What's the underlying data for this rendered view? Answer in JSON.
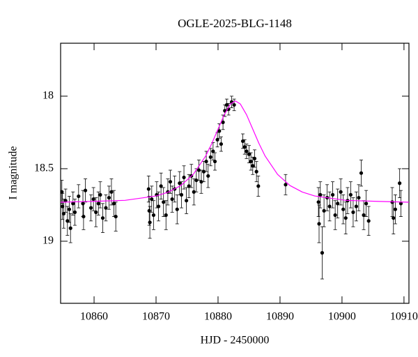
{
  "chart_data": {
    "type": "errorbar",
    "title": "OGLE-2025-BLG-1148",
    "xlabel": "HJD - 2450000",
    "ylabel": "I magnitude",
    "xlim": [
      10854.6,
      10910.8
    ],
    "ylim": [
      17.635,
      19.428
    ],
    "y_inverted": true,
    "xticks": [
      10860,
      10870,
      10880,
      10890,
      10900,
      10910
    ],
    "yticks": [
      18,
      18.5,
      19
    ],
    "series": [
      {
        "type": "errorbar",
        "color": "#000000",
        "x": [
          10854.8,
          10854.9,
          10855.1,
          10855.4,
          10855.7,
          10856.0,
          10856.2,
          10856.6,
          10856.9,
          10857.5,
          10858.2,
          10858.3,
          10858.6,
          10859.5,
          10859.9,
          10860.3,
          10860.7,
          10861.0,
          10861.4,
          10861.9,
          10862.4,
          10862.8,
          10863.2,
          10863.5,
          10868.8,
          10868.9,
          10869.0,
          10869.3,
          10869.6,
          10870.1,
          10870.4,
          10870.8,
          10871.2,
          10871.6,
          10871.9,
          10872.3,
          10872.6,
          10873.0,
          10873.4,
          10873.8,
          10874.1,
          10874.5,
          10874.9,
          10875.3,
          10875.7,
          10876.1,
          10876.5,
          10876.9,
          10877.3,
          10877.7,
          10878.1,
          10878.4,
          10878.8,
          10879.2,
          10879.5,
          10879.9,
          10880.2,
          10880.5,
          10880.8,
          10881.1,
          10881.4,
          10881.7,
          10882.2,
          10882.6,
          10884.0,
          10884.3,
          10884.6,
          10885.0,
          10885.3,
          10885.6,
          10885.9,
          10886.2,
          10886.5,
          10890.9,
          10896.2,
          10896.3,
          10896.5,
          10896.8,
          10897.1,
          10897.6,
          10898.0,
          10898.5,
          10898.9,
          10899.3,
          10899.8,
          10900.2,
          10900.6,
          10900.9,
          10901.4,
          10901.8,
          10902.3,
          10902.7,
          10903.1,
          10903.5,
          10903.9,
          10904.3,
          10908.1,
          10908.3,
          10908.6,
          10909.3,
          10909.5
        ],
        "values": [
          18.66,
          18.76,
          18.81,
          18.72,
          18.86,
          18.78,
          18.91,
          18.74,
          18.8,
          18.69,
          18.74,
          18.83,
          18.65,
          18.77,
          18.71,
          18.8,
          18.74,
          18.68,
          18.84,
          18.77,
          18.7,
          18.66,
          18.74,
          18.83,
          18.64,
          18.79,
          18.87,
          18.71,
          18.82,
          18.68,
          18.76,
          18.62,
          18.73,
          18.82,
          18.66,
          18.59,
          18.71,
          18.64,
          18.78,
          18.6,
          18.68,
          18.56,
          18.72,
          18.62,
          18.55,
          18.66,
          18.58,
          18.51,
          18.59,
          18.52,
          18.45,
          18.55,
          18.42,
          18.38,
          18.45,
          18.3,
          18.24,
          18.33,
          18.18,
          18.1,
          18.06,
          18.09,
          18.04,
          18.06,
          18.31,
          18.35,
          18.38,
          18.4,
          18.45,
          18.48,
          18.43,
          18.52,
          18.62,
          18.61,
          18.73,
          18.88,
          18.68,
          19.08,
          18.79,
          18.7,
          18.76,
          18.68,
          18.82,
          18.74,
          18.66,
          18.78,
          18.84,
          18.72,
          18.68,
          18.8,
          18.76,
          18.7,
          18.53,
          18.82,
          18.74,
          18.86,
          18.73,
          18.84,
          18.78,
          18.6,
          18.74
        ],
        "errors": [
          0.08,
          0.09,
          0.1,
          0.08,
          0.1,
          0.09,
          0.1,
          0.08,
          0.09,
          0.08,
          0.09,
          0.09,
          0.08,
          0.09,
          0.08,
          0.1,
          0.08,
          0.09,
          0.1,
          0.09,
          0.08,
          0.09,
          0.09,
          0.1,
          0.09,
          0.1,
          0.11,
          0.09,
          0.1,
          0.09,
          0.1,
          0.09,
          0.1,
          0.1,
          0.09,
          0.08,
          0.09,
          0.09,
          0.1,
          0.08,
          0.09,
          0.08,
          0.09,
          0.08,
          0.08,
          0.09,
          0.08,
          0.07,
          0.08,
          0.07,
          0.07,
          0.08,
          0.06,
          0.06,
          0.06,
          0.05,
          0.05,
          0.05,
          0.05,
          0.04,
          0.04,
          0.04,
          0.04,
          0.04,
          0.05,
          0.05,
          0.05,
          0.06,
          0.06,
          0.06,
          0.06,
          0.07,
          0.07,
          0.07,
          0.1,
          0.13,
          0.09,
          0.18,
          0.11,
          0.09,
          0.1,
          0.09,
          0.1,
          0.1,
          0.09,
          0.1,
          0.11,
          0.09,
          0.09,
          0.1,
          0.1,
          0.09,
          0.09,
          0.1,
          0.09,
          0.1,
          0.1,
          0.11,
          0.1,
          0.1,
          0.09
        ]
      },
      {
        "type": "line",
        "color": "#ff00ff",
        "x": [
          10854.6,
          10860,
          10865,
          10870,
          10872,
          10874,
          10876,
          10878,
          10879,
          10880,
          10881,
          10882,
          10882.8,
          10883.6,
          10884.6,
          10885.6,
          10886.6,
          10887.6,
          10889.6,
          10891.6,
          10893.6,
          10895.6,
          10900.6,
          10905.6,
          10910.8
        ],
        "values": [
          18.731,
          18.725,
          18.718,
          18.688,
          18.661,
          18.616,
          18.539,
          18.413,
          18.326,
          18.227,
          18.128,
          18.054,
          18.033,
          18.054,
          18.128,
          18.227,
          18.326,
          18.413,
          18.539,
          18.616,
          18.661,
          18.688,
          18.718,
          18.725,
          18.731
        ]
      }
    ]
  }
}
